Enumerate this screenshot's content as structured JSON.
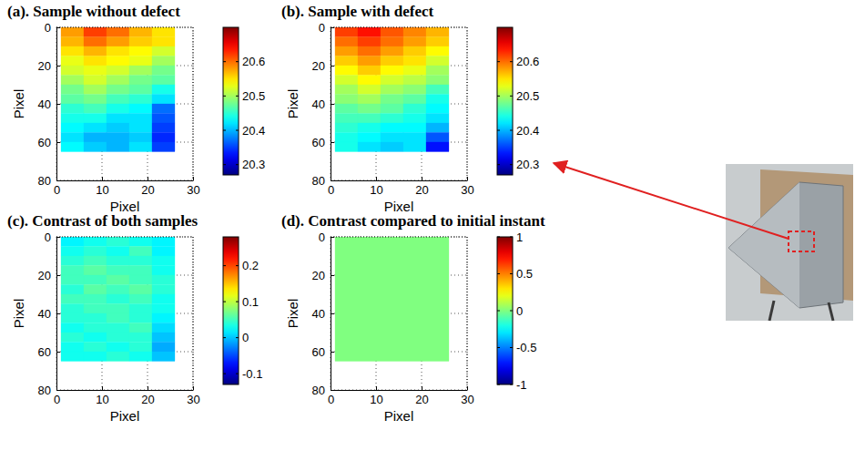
{
  "chart_data": [
    {
      "type": "heatmap",
      "title": "(a). Sample without defect",
      "x_label": "Pixel",
      "y_label": "Pixel",
      "xlim": [
        0,
        30
      ],
      "ylim": [
        80,
        0
      ],
      "xticks": [
        0,
        10,
        20,
        30
      ],
      "yticks": [
        0,
        20,
        40,
        60,
        80
      ],
      "grid": true,
      "x_edges": [
        1,
        6,
        11,
        16,
        21,
        26
      ],
      "y_edges": [
        0,
        5,
        10,
        15,
        20,
        25,
        30,
        35,
        40,
        45,
        50,
        55,
        60,
        65
      ],
      "z": [
        [
          20.58,
          20.62,
          20.6,
          20.57,
          20.55
        ],
        [
          20.57,
          20.6,
          20.58,
          20.56,
          20.55
        ],
        [
          20.55,
          20.57,
          20.55,
          20.54,
          20.52
        ],
        [
          20.53,
          20.55,
          20.54,
          20.53,
          20.5
        ],
        [
          20.52,
          20.53,
          20.52,
          20.5,
          20.48
        ],
        [
          20.5,
          20.52,
          20.5,
          20.48,
          20.47
        ],
        [
          20.48,
          20.5,
          20.48,
          20.47,
          20.44
        ],
        [
          20.47,
          20.48,
          20.46,
          20.45,
          20.42
        ],
        [
          20.45,
          20.46,
          20.44,
          20.43,
          20.37
        ],
        [
          20.44,
          20.44,
          20.42,
          20.42,
          20.36
        ],
        [
          20.43,
          20.42,
          20.41,
          20.42,
          20.35
        ],
        [
          20.42,
          20.4,
          20.4,
          20.41,
          20.34
        ],
        [
          20.43,
          20.41,
          20.4,
          20.42,
          20.35
        ]
      ],
      "clim": [
        20.27,
        20.7
      ],
      "cticks": [
        20.3,
        20.4,
        20.5,
        20.6
      ]
    },
    {
      "type": "heatmap",
      "title": "(b). Sample with defect",
      "x_label": "Pixel",
      "y_label": "Pixel",
      "xlim": [
        0,
        30
      ],
      "ylim": [
        80,
        0
      ],
      "xticks": [
        0,
        10,
        20,
        30
      ],
      "yticks": [
        0,
        20,
        40,
        60,
        80
      ],
      "grid": true,
      "x_edges": [
        1,
        6,
        11,
        16,
        21,
        26
      ],
      "y_edges": [
        0,
        5,
        10,
        15,
        20,
        25,
        30,
        35,
        40,
        45,
        50,
        55,
        60,
        65
      ],
      "z": [
        [
          20.62,
          20.64,
          20.61,
          20.59,
          20.57
        ],
        [
          20.6,
          20.62,
          20.6,
          20.58,
          20.56
        ],
        [
          20.58,
          20.6,
          20.58,
          20.56,
          20.54
        ],
        [
          20.56,
          20.58,
          20.56,
          20.55,
          20.52
        ],
        [
          20.54,
          20.56,
          20.54,
          20.53,
          20.5
        ],
        [
          20.52,
          20.54,
          20.52,
          20.51,
          20.49
        ],
        [
          20.5,
          20.52,
          20.5,
          20.49,
          20.46
        ],
        [
          20.49,
          20.5,
          20.48,
          20.47,
          20.44
        ],
        [
          20.47,
          20.48,
          20.47,
          20.45,
          20.43
        ],
        [
          20.46,
          20.46,
          20.45,
          20.44,
          20.42
        ],
        [
          20.45,
          20.44,
          20.43,
          20.43,
          20.4
        ],
        [
          20.44,
          20.43,
          20.42,
          20.42,
          20.36
        ],
        [
          20.44,
          20.42,
          20.41,
          20.42,
          20.33
        ]
      ],
      "clim": [
        20.27,
        20.7
      ],
      "cticks": [
        20.3,
        20.4,
        20.5,
        20.6
      ]
    },
    {
      "type": "heatmap",
      "title": "(c). Contrast of both samples",
      "x_label": "Pixel",
      "y_label": "Pixel",
      "xlim": [
        0,
        30
      ],
      "ylim": [
        80,
        0
      ],
      "xticks": [
        0,
        10,
        20,
        30
      ],
      "yticks": [
        0,
        20,
        40,
        60,
        80
      ],
      "grid": true,
      "x_edges": [
        1,
        6,
        11,
        16,
        21,
        26
      ],
      "y_edges": [
        0,
        5,
        10,
        15,
        20,
        25,
        30,
        35,
        40,
        45,
        50,
        55,
        60,
        65
      ],
      "z": [
        [
          0.02,
          0.03,
          0.04,
          0.03,
          0.02
        ],
        [
          0.03,
          0.04,
          0.03,
          0.05,
          0.02
        ],
        [
          0.04,
          0.05,
          0.04,
          0.04,
          0.03
        ],
        [
          0.05,
          0.06,
          0.05,
          0.05,
          0.03
        ],
        [
          0.05,
          0.05,
          0.06,
          0.05,
          0.04
        ],
        [
          0.04,
          0.06,
          0.05,
          0.06,
          0.04
        ],
        [
          0.05,
          0.05,
          0.04,
          0.05,
          0.03
        ],
        [
          0.04,
          0.05,
          0.05,
          0.04,
          0.03
        ],
        [
          0.04,
          0.04,
          0.05,
          0.04,
          0.02
        ],
        [
          0.03,
          0.04,
          0.04,
          0.05,
          0.01
        ],
        [
          0.04,
          0.03,
          0.04,
          0.04,
          0.0
        ],
        [
          0.03,
          0.04,
          0.03,
          0.04,
          -0.01
        ],
        [
          0.03,
          0.03,
          0.04,
          0.03,
          0.0
        ]
      ],
      "clim": [
        -0.13,
        0.28
      ],
      "cticks": [
        -0.1,
        0,
        0.1,
        0.2
      ]
    },
    {
      "type": "heatmap",
      "title": "(d). Contrast compared to initial instant",
      "x_label": "Pixel",
      "y_label": "Pixel",
      "xlim": [
        0,
        30
      ],
      "ylim": [
        80,
        0
      ],
      "xticks": [
        0,
        10,
        20,
        30
      ],
      "yticks": [
        0,
        20,
        40,
        60,
        80
      ],
      "grid": true,
      "x_edges": [
        1,
        26
      ],
      "y_edges": [
        0,
        65
      ],
      "z": [
        [
          0
        ]
      ],
      "clim": [
        -1,
        1
      ],
      "cticks": [
        -1,
        -0.5,
        0,
        0.5,
        1
      ]
    }
  ]
}
